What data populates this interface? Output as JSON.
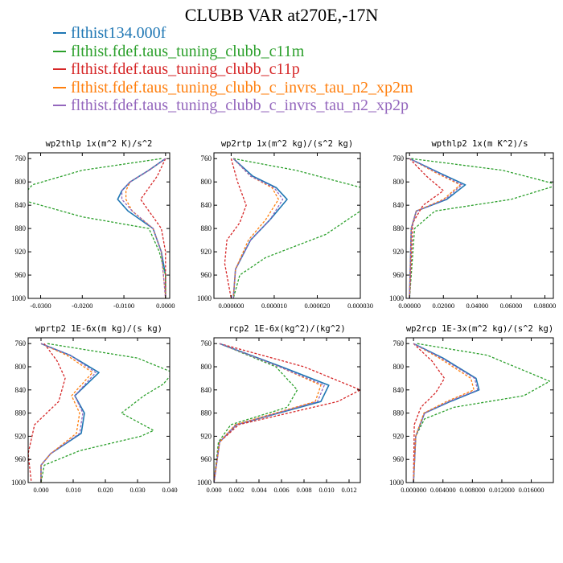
{
  "title": "CLUBB VAR at270E,-17N",
  "colors": {
    "blue": "#1f77b4",
    "green": "#2ca02c",
    "red": "#d62728",
    "orange": "#ff7f0e",
    "purple": "#9467bd"
  },
  "legend": [
    {
      "label": "flthist134.000f",
      "color": "#1f77b4"
    },
    {
      "label": "flthist.fdef.taus_tuning_clubb_c11m",
      "color": "#2ca02c"
    },
    {
      "label": "flthist.fdef.taus_tuning_clubb_c11p",
      "color": "#d62728"
    },
    {
      "label": "flthist.fdef.taus_tuning_clubb_c_invrs_tau_n2_xp2m",
      "color": "#ff7f0e"
    },
    {
      "label": "flthist.fdef.taus_tuning_clubb_c_invrs_tau_n2_xp2p",
      "color": "#9467bd"
    }
  ],
  "chart_data": [
    {
      "type": "line",
      "title": "wp2thlp  1x(m^2 K)/s^2",
      "xlim": [
        -0.033,
        0.001
      ],
      "xticks": [
        -0.03,
        -0.02,
        -0.01,
        0.0
      ],
      "xticklabels": [
        "-0.0300",
        "-0.0200",
        "-0.0100",
        "0.0000"
      ],
      "ylim": [
        750,
        1000
      ],
      "yticks": [
        760,
        800,
        840,
        880,
        920,
        960,
        1000
      ],
      "series": [
        {
          "color": "blue",
          "dash": false,
          "x": [
            0.0,
            -0.004,
            -0.0085,
            -0.0105,
            -0.0115,
            -0.009,
            -0.003,
            -0.001,
            0.0,
            0.0
          ],
          "y": [
            760,
            780,
            800,
            815,
            830,
            850,
            880,
            920,
            960,
            1000
          ]
        },
        {
          "color": "green",
          "dash": true,
          "x": [
            -0.001,
            -0.02,
            -0.032,
            -0.035,
            -0.02,
            -0.004,
            -0.0015,
            0.0,
            0.0
          ],
          "y": [
            760,
            780,
            805,
            830,
            860,
            880,
            920,
            960,
            1000
          ]
        },
        {
          "color": "red",
          "dash": true,
          "x": [
            0.0,
            -0.002,
            -0.006,
            -0.003,
            -0.001,
            0.0,
            0.0
          ],
          "y": [
            760,
            790,
            830,
            860,
            880,
            920,
            1000
          ]
        },
        {
          "color": "orange",
          "dash": true,
          "x": [
            0.0,
            -0.004,
            -0.0085,
            -0.0095,
            -0.0095,
            -0.008,
            -0.003,
            -0.001,
            0.0
          ],
          "y": [
            760,
            780,
            800,
            815,
            830,
            850,
            880,
            920,
            1000
          ]
        },
        {
          "color": "purple",
          "dash": true,
          "x": [
            0.0,
            -0.004,
            -0.0085,
            -0.0105,
            -0.0105,
            -0.008,
            -0.003,
            -0.001,
            0.0
          ],
          "y": [
            760,
            780,
            800,
            815,
            830,
            850,
            880,
            920,
            1000
          ]
        }
      ]
    },
    {
      "type": "line",
      "title": "wp2rtp  1x(m^2 kg)/(s^2 kg)",
      "xlim": [
        -4e-06,
        3e-05
      ],
      "xticks": [
        0,
        1e-05,
        2e-05,
        3e-05
      ],
      "xticklabels": [
        "0.000000",
        "0.000010",
        "0.000020",
        "0.000030"
      ],
      "ylim": [
        750,
        1000
      ],
      "yticks": [
        760,
        800,
        840,
        880,
        920,
        960,
        1000
      ],
      "series": [
        {
          "color": "blue",
          "dash": false,
          "x": [
            5e-07,
            5e-06,
            1.05e-05,
            1.3e-05,
            9e-06,
            4.5e-06,
            1e-06,
            5e-07
          ],
          "y": [
            760,
            790,
            810,
            830,
            865,
            900,
            950,
            1000
          ]
        },
        {
          "color": "green",
          "dash": true,
          "x": [
            5e-07,
            1.5e-05,
            3.3e-05,
            3e-05,
            2.2e-05,
            8e-06,
            2e-06,
            5e-07
          ],
          "y": [
            760,
            780,
            815,
            850,
            890,
            930,
            960,
            1000
          ]
        },
        {
          "color": "red",
          "dash": true,
          "x": [
            0.0,
            1.5e-06,
            3.5e-06,
            2e-06,
            -1e-06,
            -1.5e-06,
            0.0
          ],
          "y": [
            760,
            800,
            840,
            870,
            900,
            940,
            1000
          ]
        },
        {
          "color": "orange",
          "dash": true,
          "x": [
            5e-07,
            4.5e-06,
            9.5e-06,
            1.1e-05,
            8e-06,
            4e-06,
            1e-06,
            5e-07
          ],
          "y": [
            760,
            790,
            810,
            830,
            865,
            900,
            950,
            1000
          ]
        },
        {
          "color": "purple",
          "dash": true,
          "x": [
            5e-07,
            4.5e-06,
            1e-05,
            1.2e-05,
            9e-06,
            4.5e-06,
            1e-06,
            5e-07
          ],
          "y": [
            760,
            790,
            810,
            830,
            865,
            900,
            950,
            1000
          ]
        }
      ]
    },
    {
      "type": "line",
      "title": "wpthlp2  1x(m K^2)/s",
      "xlim": [
        -0.002,
        0.085
      ],
      "xticks": [
        0,
        0.02,
        0.04,
        0.06,
        0.08
      ],
      "xticklabels": [
        "0.00000",
        "0.02000",
        "0.04000",
        "0.06000",
        "0.08000"
      ],
      "ylim": [
        750,
        1000
      ],
      "yticks": [
        760,
        800,
        840,
        880,
        920,
        960,
        1000
      ],
      "series": [
        {
          "color": "blue",
          "dash": false,
          "x": [
            0.0,
            0.018,
            0.033,
            0.022,
            0.004,
            0.001,
            0.0
          ],
          "y": [
            760,
            785,
            805,
            830,
            850,
            880,
            1000
          ]
        },
        {
          "color": "green",
          "dash": true,
          "x": [
            0.001,
            0.055,
            0.088,
            0.06,
            0.015,
            0.003,
            0.0
          ],
          "y": [
            760,
            780,
            805,
            830,
            850,
            880,
            1000
          ]
        },
        {
          "color": "red",
          "dash": true,
          "x": [
            0.0,
            0.01,
            0.02,
            0.008,
            0.002,
            0.0
          ],
          "y": [
            760,
            790,
            815,
            840,
            870,
            1000
          ]
        },
        {
          "color": "orange",
          "dash": true,
          "x": [
            0.0,
            0.016,
            0.03,
            0.02,
            0.004,
            0.001,
            0.0
          ],
          "y": [
            760,
            785,
            805,
            830,
            850,
            880,
            1000
          ]
        },
        {
          "color": "purple",
          "dash": true,
          "x": [
            0.0,
            0.017,
            0.031,
            0.021,
            0.004,
            0.001,
            0.0
          ],
          "y": [
            760,
            785,
            805,
            830,
            850,
            880,
            1000
          ]
        }
      ]
    },
    {
      "type": "line",
      "title": "wprtp2  1E-6x(m kg)/(s kg)",
      "xlim": [
        -0.004,
        0.04
      ],
      "xticks": [
        0,
        0.01,
        0.02,
        0.03,
        0.04
      ],
      "xticklabels": [
        "0.000",
        "0.010",
        "0.020",
        "0.030",
        "0.040"
      ],
      "ylim": [
        750,
        1000
      ],
      "yticks": [
        760,
        800,
        840,
        880,
        920,
        960,
        1000
      ],
      "series": [
        {
          "color": "blue",
          "dash": false,
          "x": [
            0.0,
            0.009,
            0.018,
            0.0105,
            0.0135,
            0.0125,
            0.003,
            0.0,
            0.0
          ],
          "y": [
            760,
            780,
            810,
            850,
            880,
            915,
            950,
            970,
            1000
          ]
        },
        {
          "color": "green",
          "dash": true,
          "x": [
            0.002,
            0.03,
            0.041,
            0.038,
            0.032,
            0.025,
            0.035,
            0.031,
            0.012,
            0.001,
            0.0
          ],
          "y": [
            760,
            785,
            810,
            830,
            850,
            880,
            910,
            920,
            945,
            970,
            1000
          ]
        },
        {
          "color": "red",
          "dash": true,
          "x": [
            0.001,
            0.005,
            0.0075,
            0.0055,
            -0.002,
            -0.004,
            -0.003
          ],
          "y": [
            760,
            790,
            820,
            860,
            900,
            950,
            1000
          ]
        },
        {
          "color": "orange",
          "dash": true,
          "x": [
            0.0,
            0.008,
            0.016,
            0.0095,
            0.012,
            0.011,
            0.003,
            0.0,
            0.0
          ],
          "y": [
            760,
            780,
            810,
            850,
            880,
            915,
            950,
            970,
            1000
          ]
        },
        {
          "color": "purple",
          "dash": true,
          "x": [
            0.0,
            0.009,
            0.017,
            0.0105,
            0.013,
            0.012,
            0.003,
            0.0,
            0.0
          ],
          "y": [
            760,
            780,
            810,
            850,
            880,
            915,
            950,
            970,
            1000
          ]
        }
      ]
    },
    {
      "type": "line",
      "title": "rcp2  1E-6x(kg^2)/(kg^2)",
      "xlim": [
        0,
        0.013
      ],
      "xticks": [
        0,
        0.002,
        0.004,
        0.006,
        0.008,
        0.01,
        0.012
      ],
      "xticklabels": [
        "0.000",
        "0.002",
        "0.004",
        "0.006",
        "0.008",
        "0.010",
        "0.012"
      ],
      "ylim": [
        750,
        1000
      ],
      "yticks": [
        760,
        800,
        840,
        880,
        920,
        960,
        1000
      ],
      "series": [
        {
          "color": "blue",
          "dash": false,
          "x": [
            0.0005,
            0.006,
            0.0102,
            0.0095,
            0.002,
            0.0005,
            0.0
          ],
          "y": [
            760,
            800,
            832,
            860,
            900,
            930,
            1000
          ]
        },
        {
          "color": "green",
          "dash": true,
          "x": [
            0.0005,
            0.0055,
            0.0074,
            0.0065,
            0.0015,
            0.0004,
            0.0
          ],
          "y": [
            760,
            800,
            840,
            870,
            900,
            930,
            1000
          ]
        },
        {
          "color": "red",
          "dash": true,
          "x": [
            0.0005,
            0.008,
            0.013,
            0.011,
            0.0022,
            0.0005,
            0.0
          ],
          "y": [
            760,
            800,
            840,
            860,
            900,
            930,
            1000
          ]
        },
        {
          "color": "orange",
          "dash": true,
          "x": [
            0.0005,
            0.0058,
            0.0095,
            0.009,
            0.0019,
            0.0005,
            0.0
          ],
          "y": [
            760,
            800,
            832,
            860,
            900,
            930,
            1000
          ]
        },
        {
          "color": "purple",
          "dash": true,
          "x": [
            0.0005,
            0.0058,
            0.0098,
            0.0092,
            0.002,
            0.0005,
            0.0
          ],
          "y": [
            760,
            800,
            832,
            860,
            900,
            930,
            1000
          ]
        }
      ]
    },
    {
      "type": "line",
      "title": "wp2rcp  1E-3x(m^2 kg)/(s^2 kg)",
      "xlim": [
        -0.001,
        0.019
      ],
      "xticks": [
        0,
        0.004,
        0.008,
        0.012,
        0.016
      ],
      "xticklabels": [
        "0.000000",
        "0.004000",
        "0.008000",
        "0.012000",
        "0.016000"
      ],
      "ylim": [
        750,
        1000
      ],
      "yticks": [
        760,
        800,
        840,
        880,
        920,
        960,
        1000
      ],
      "series": [
        {
          "color": "blue",
          "dash": false,
          "x": [
            0.0,
            0.004,
            0.0085,
            0.0089,
            0.005,
            0.0015,
            0.0003,
            0.0
          ],
          "y": [
            760,
            785,
            820,
            840,
            860,
            880,
            920,
            1000
          ]
        },
        {
          "color": "green",
          "dash": true,
          "x": [
            0.0005,
            0.01,
            0.0185,
            0.015,
            0.0055,
            0.0015,
            0.0003,
            0.0
          ],
          "y": [
            760,
            780,
            825,
            850,
            870,
            890,
            920,
            1000
          ]
        },
        {
          "color": "red",
          "dash": true,
          "x": [
            0.0,
            0.0025,
            0.0042,
            0.003,
            0.001,
            0.0001,
            0.0
          ],
          "y": [
            760,
            790,
            820,
            845,
            870,
            900,
            1000
          ]
        },
        {
          "color": "orange",
          "dash": true,
          "x": [
            0.0,
            0.0035,
            0.0078,
            0.0082,
            0.0045,
            0.0014,
            0.0003,
            0.0
          ],
          "y": [
            760,
            785,
            820,
            840,
            860,
            880,
            920,
            1000
          ]
        },
        {
          "color": "purple",
          "dash": true,
          "x": [
            0.0,
            0.0038,
            0.0083,
            0.0087,
            0.0048,
            0.0015,
            0.0003,
            0.0
          ],
          "y": [
            760,
            785,
            820,
            840,
            860,
            880,
            920,
            1000
          ]
        }
      ]
    }
  ]
}
